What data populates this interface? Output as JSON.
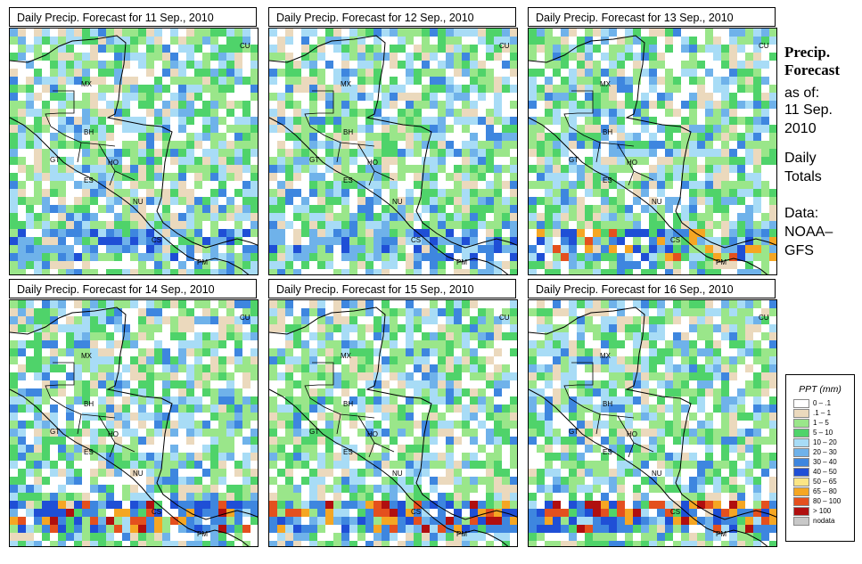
{
  "panels": [
    {
      "title": "Daily Precip. Forecast for  11 Sep., 2010",
      "seed": 11
    },
    {
      "title": "Daily Precip. Forecast for  12 Sep., 2010",
      "seed": 12
    },
    {
      "title": "Daily Precip. Forecast for  13 Sep., 2010",
      "seed": 13
    },
    {
      "title": "Daily Precip. Forecast for  14 Sep., 2010",
      "seed": 14
    },
    {
      "title": "Daily Precip. Forecast for  15 Sep., 2010",
      "seed": 15
    },
    {
      "title": "Daily Precip. Forecast for  16 Sep., 2010",
      "seed": 16
    }
  ],
  "country_labels": [
    "MX",
    "BH",
    "GT",
    "HO",
    "ES",
    "NU",
    "CS",
    "PM",
    "CU"
  ],
  "side": {
    "title_line1": "Precip.",
    "title_line2": "Forecast",
    "asof": "as of:",
    "date1": "11 Sep.",
    "date2": "2010",
    "totals1": "Daily",
    "totals2": "Totals",
    "data1": "Data:",
    "data2": "NOAA–",
    "data3": "GFS"
  },
  "legend": {
    "title": "PPT (mm)",
    "items": [
      {
        "label": "0 – .1",
        "color": "#ffffff"
      },
      {
        "label": ".1 – 1",
        "color": "#ebd9bd"
      },
      {
        "label": "1 – 5",
        "color": "#9ae68a"
      },
      {
        "label": "5 – 10",
        "color": "#4fd36a"
      },
      {
        "label": "10 – 20",
        "color": "#a8dcf6"
      },
      {
        "label": "20 – 30",
        "color": "#6fb2ea"
      },
      {
        "label": "30 – 40",
        "color": "#3e86df"
      },
      {
        "label": "40 – 50",
        "color": "#1f4fd6"
      },
      {
        "label": "50 – 65",
        "color": "#fbe585"
      },
      {
        "label": "65 – 80",
        "color": "#f5a623"
      },
      {
        "label": "80 – 100",
        "color": "#e4501e"
      },
      {
        "label": "> 100",
        "color": "#b00f0f"
      },
      {
        "label": "nodata",
        "color": "#c8c8c8"
      }
    ]
  }
}
